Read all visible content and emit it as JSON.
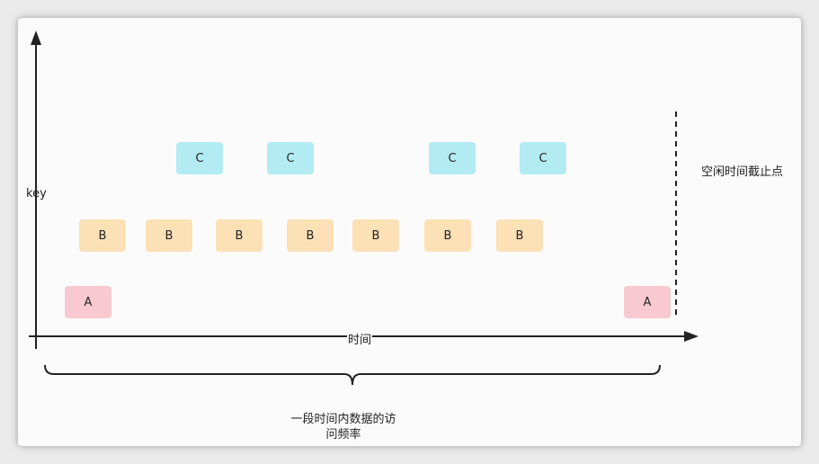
{
  "axis": {
    "y_label": "key",
    "x_label": "时间"
  },
  "colors": {
    "A": "#f8c9d0",
    "B": "#fce0b6",
    "C": "#b3ebf2",
    "line": "#222222"
  },
  "keys": {
    "A": "A",
    "B": "B",
    "C": "C"
  },
  "annotations": {
    "cutoff": "空闲时间截止点",
    "frequency_line1": "一段时间内数据的访",
    "frequency_line2": "问频率"
  }
}
